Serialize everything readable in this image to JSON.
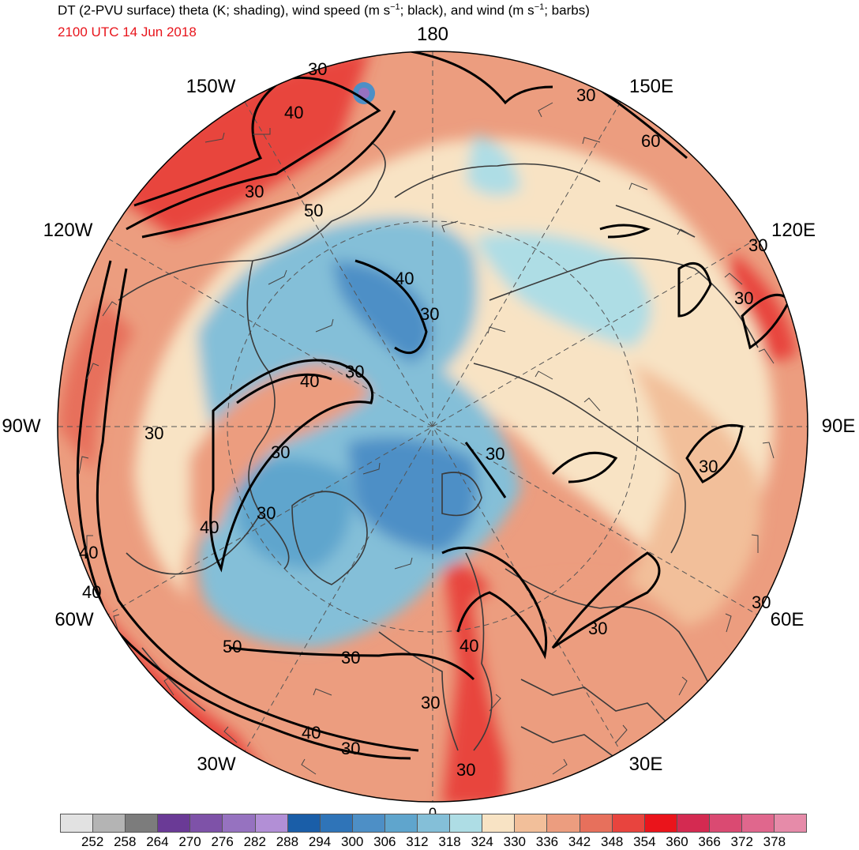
{
  "title": {
    "text_before": "DT (2-PVU surface) theta (K; shading), wind speed (m s",
    "sup1": "−1",
    "text_middle": "; black), and wind (m s",
    "sup2": "−1",
    "text_after": "; barbs)"
  },
  "valid_time": "2100 UTC 14 Jun 2018",
  "projection": "north polar stereographic",
  "longitude_labels": {
    "top": "180",
    "lon150w": "150W",
    "lon150e": "150E",
    "lon120w": "120W",
    "lon120e": "120E",
    "lon90w": "90W",
    "lon90e": "90E",
    "lon60w": "60W",
    "lon60e": "60E",
    "lon30w": "30W",
    "lon30e": "30E",
    "bottom": "0"
  },
  "contour_labels": [
    "30",
    "40",
    "50",
    "60"
  ],
  "colorbar": {
    "colors": [
      "#e2e2e2",
      "#b4b4b4",
      "#7c7c7c",
      "#6a3a96",
      "#7e52a8",
      "#9672c0",
      "#b28fd6",
      "#1a5ea8",
      "#2f74b8",
      "#4d8fc6",
      "#5fa5cd",
      "#84bfd8",
      "#aedde5",
      "#f8e3c4",
      "#f2bf9a",
      "#ec9d7f",
      "#e7705c",
      "#e8443e",
      "#ea141b",
      "#d42a51",
      "#da4a72",
      "#e0678d",
      "#e68ba9"
    ],
    "tick_labels": [
      "252",
      "258",
      "264",
      "270",
      "276",
      "282",
      "288",
      "294",
      "300",
      "306",
      "312",
      "318",
      "324",
      "330",
      "336",
      "342",
      "348",
      "354",
      "360",
      "366",
      "372",
      "378"
    ]
  }
}
